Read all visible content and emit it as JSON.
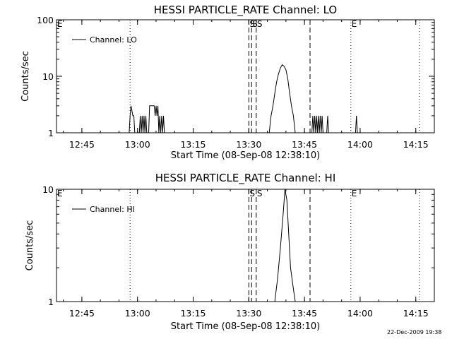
{
  "footer": {
    "timestamp": "22-Dec-2009 19:38"
  },
  "chart_data": [
    {
      "type": "line",
      "title": "HESSI PARTICLE_RATE Channel: LO",
      "xlabel": "Start Time (08-Sep-08 12:38:10)",
      "ylabel": "Counts/sec",
      "y_scale": "log",
      "x_ticks": [
        "12:45",
        "13:00",
        "13:15",
        "13:30",
        "13:45",
        "14:00",
        "14:15"
      ],
      "y_ticks": [
        "1",
        "10",
        "100"
      ],
      "xlim": [
        "12:38:10",
        "14:20:00"
      ],
      "ylim": [
        1,
        100
      ],
      "legend": {
        "placement": "top-left",
        "entries": [
          "Channel: LO"
        ]
      },
      "series": [
        {
          "name": "Channel: LO",
          "points": [
            [
              "12:57:45",
              1
            ],
            [
              "12:58:00",
              2
            ],
            [
              "12:58:15",
              3
            ],
            [
              "12:58:45",
              2
            ],
            [
              "12:59:00",
              2
            ],
            [
              "12:59:15",
              1
            ],
            [
              "13:00:30",
              1
            ],
            [
              "13:00:45",
              2
            ],
            [
              "13:01:00",
              1
            ],
            [
              "13:01:15",
              2
            ],
            [
              "13:01:30",
              1
            ],
            [
              "13:01:45",
              2
            ],
            [
              "13:02:00",
              1
            ],
            [
              "13:02:15",
              2
            ],
            [
              "13:02:30",
              1
            ],
            [
              "13:03:00",
              1
            ],
            [
              "13:03:15",
              3
            ],
            [
              "13:04:30",
              3
            ],
            [
              "13:04:45",
              2
            ],
            [
              "13:05:00",
              3
            ],
            [
              "13:05:15",
              2
            ],
            [
              "13:05:30",
              3
            ],
            [
              "13:05:45",
              1
            ],
            [
              "13:06:00",
              2
            ],
            [
              "13:06:15",
              1
            ],
            [
              "13:06:30",
              2
            ],
            [
              "13:06:45",
              1
            ],
            [
              "13:07:00",
              2
            ],
            [
              "13:07:15",
              1
            ],
            [
              "13:35:30",
              1
            ],
            [
              "13:36:00",
              2
            ],
            [
              "13:36:30",
              3
            ],
            [
              "13:37:00",
              5
            ],
            [
              "13:37:30",
              8
            ],
            [
              "13:38:00",
              11
            ],
            [
              "13:38:30",
              14
            ],
            [
              "13:39:00",
              16
            ],
            [
              "13:39:30",
              15
            ],
            [
              "13:40:00",
              13
            ],
            [
              "13:40:30",
              9
            ],
            [
              "13:41:00",
              5
            ],
            [
              "13:41:30",
              3
            ],
            [
              "13:42:00",
              2
            ],
            [
              "13:42:30",
              1
            ],
            [
              "13:47:00",
              1
            ],
            [
              "13:47:15",
              2
            ],
            [
              "13:47:30",
              1
            ],
            [
              "13:47:45",
              2
            ],
            [
              "13:48:00",
              1
            ],
            [
              "13:48:15",
              2
            ],
            [
              "13:48:30",
              1
            ],
            [
              "13:48:45",
              2
            ],
            [
              "13:49:00",
              1
            ],
            [
              "13:49:15",
              2
            ],
            [
              "13:49:30",
              1
            ],
            [
              "13:49:45",
              2
            ],
            [
              "13:50:00",
              1
            ],
            [
              "13:51:00",
              1
            ],
            [
              "13:51:15",
              2
            ],
            [
              "13:51:30",
              1
            ],
            [
              "13:58:45",
              1
            ],
            [
              "13:59:00",
              2
            ],
            [
              "13:59:15",
              1
            ]
          ]
        }
      ],
      "vlines": [
        {
          "time": "12:58:00",
          "style": "dotted",
          "label": ""
        },
        {
          "time": "13:30:00",
          "style": "dashed",
          "label": "S"
        },
        {
          "time": "13:30:45",
          "style": "dashed",
          "label": "S"
        },
        {
          "time": "13:32:00",
          "style": "dashed",
          "label": "S"
        },
        {
          "time": "13:46:30",
          "style": "dashed",
          "label": ""
        },
        {
          "time": "13:57:30",
          "style": "dotted",
          "label": "E"
        },
        {
          "time": "14:16:00",
          "style": "dotted",
          "label": ""
        }
      ],
      "corner_label": "E"
    },
    {
      "type": "line",
      "title": "HESSI PARTICLE_RATE Channel: HI",
      "xlabel": "Start Time (08-Sep-08 12:38:10)",
      "ylabel": "Counts/sec",
      "y_scale": "log",
      "x_ticks": [
        "12:45",
        "13:00",
        "13:15",
        "13:30",
        "13:45",
        "14:00",
        "14:15"
      ],
      "y_ticks": [
        "1",
        "10"
      ],
      "xlim": [
        "12:38:10",
        "14:20:00"
      ],
      "ylim": [
        1,
        10
      ],
      "legend": {
        "placement": "top-left",
        "entries": [
          "Channel: HI"
        ]
      },
      "series": [
        {
          "name": "Channel: HI",
          "points": [
            [
              "13:37:00",
              1
            ],
            [
              "13:37:45",
              1.6
            ],
            [
              "13:38:30",
              3
            ],
            [
              "13:39:15",
              6
            ],
            [
              "13:39:45",
              10
            ],
            [
              "13:40:15",
              8
            ],
            [
              "13:40:45",
              4
            ],
            [
              "13:41:15",
              2
            ],
            [
              "13:42:00",
              1.3
            ],
            [
              "13:42:30",
              1
            ]
          ]
        }
      ],
      "vlines": [
        {
          "time": "12:58:00",
          "style": "dotted",
          "label": ""
        },
        {
          "time": "13:30:00",
          "style": "dashed",
          "label": "S"
        },
        {
          "time": "13:30:45",
          "style": "dashed",
          "label": ""
        },
        {
          "time": "13:32:00",
          "style": "dashed",
          "label": "S"
        },
        {
          "time": "13:46:30",
          "style": "dashed",
          "label": ""
        },
        {
          "time": "13:57:30",
          "style": "dotted",
          "label": "E"
        },
        {
          "time": "14:16:00",
          "style": "dotted",
          "label": ""
        }
      ],
      "corner_label": "E"
    }
  ]
}
